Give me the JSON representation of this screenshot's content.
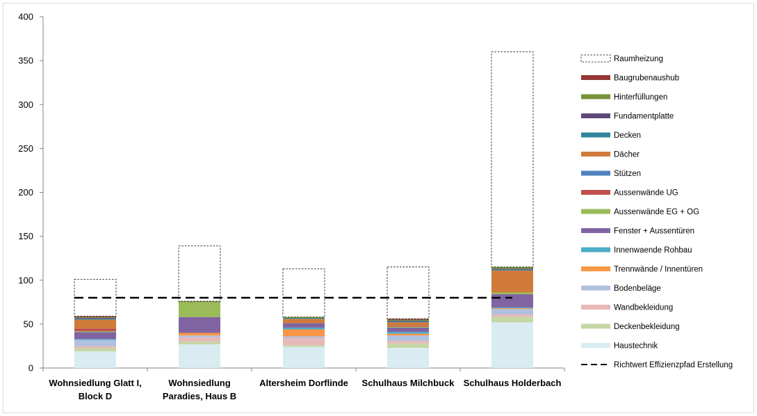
{
  "chart_data": {
    "type": "bar",
    "stacked": true,
    "ylim": [
      0,
      400
    ],
    "yticks": [
      0,
      50,
      100,
      150,
      200,
      250,
      300,
      350,
      400
    ],
    "grid": false,
    "legend_position": "right",
    "categories": [
      [
        "Wohnsiedlung Glatt I,",
        "Block D"
      ],
      [
        "Wohnsiedlung",
        "Paradies, Haus B"
      ],
      [
        "Altersheim Dorflinde"
      ],
      [
        "Schulhaus Milchbuck"
      ],
      [
        "Schulhaus Holderbach"
      ]
    ],
    "series": [
      {
        "name": "Haustechnik",
        "color": "#d9ecf2",
        "values": [
          19,
          27,
          24,
          23,
          52
        ]
      },
      {
        "name": "Deckenbekleidung",
        "color": "#c4d7a4",
        "values": [
          4,
          3,
          2,
          5,
          6
        ]
      },
      {
        "name": "Wandbekleidung",
        "color": "#e6b9b8",
        "values": [
          2,
          5,
          8,
          3,
          3
        ]
      },
      {
        "name": "Bodenbeläge",
        "color": "#b0c0e0",
        "values": [
          7,
          2,
          2,
          6,
          6
        ]
      },
      {
        "name": "Trennwände / Innentüren",
        "color": "#f79646",
        "values": [
          0,
          3,
          8,
          2,
          1
        ]
      },
      {
        "name": "Innenwaende Rohbau",
        "color": "#4bacc6",
        "values": [
          1,
          0,
          2,
          2,
          1
        ]
      },
      {
        "name": "Fenster + Aussentüren",
        "color": "#8064a2",
        "values": [
          8,
          18,
          5,
          5,
          15
        ]
      },
      {
        "name": "Aussenwände EG + OG",
        "color": "#9bbb59",
        "values": [
          1,
          17,
          0,
          1,
          2
        ]
      },
      {
        "name": "Aussenwände UG",
        "color": "#c0504d",
        "values": [
          3,
          0,
          0,
          1,
          0
        ]
      },
      {
        "name": "Stützen",
        "color": "#4f81bd",
        "values": [
          0,
          0,
          0,
          0,
          0
        ]
      },
      {
        "name": "Dächer",
        "color": "#d07b3b",
        "values": [
          10,
          0,
          5,
          4,
          25
        ]
      },
      {
        "name": "Decken",
        "color": "#31859c",
        "values": [
          1,
          0,
          1,
          1,
          1
        ]
      },
      {
        "name": "Fundamentplatte",
        "color": "#5f497a",
        "values": [
          1,
          0,
          0,
          1,
          1
        ]
      },
      {
        "name": "Hinterfüllungen",
        "color": "#77933c",
        "values": [
          1,
          1,
          1,
          1,
          2
        ]
      },
      {
        "name": "Baugrubenaushub",
        "color": "#953735",
        "values": [
          1,
          0,
          0,
          1,
          0
        ]
      },
      {
        "name": "Raumheizung",
        "color": "none",
        "dashed": true,
        "values": [
          42,
          63,
          55,
          59,
          245
        ]
      }
    ],
    "reference_line": {
      "name": "Richtwert Effizienzpfad Erstellung",
      "value": 80,
      "color": "#000000"
    }
  }
}
